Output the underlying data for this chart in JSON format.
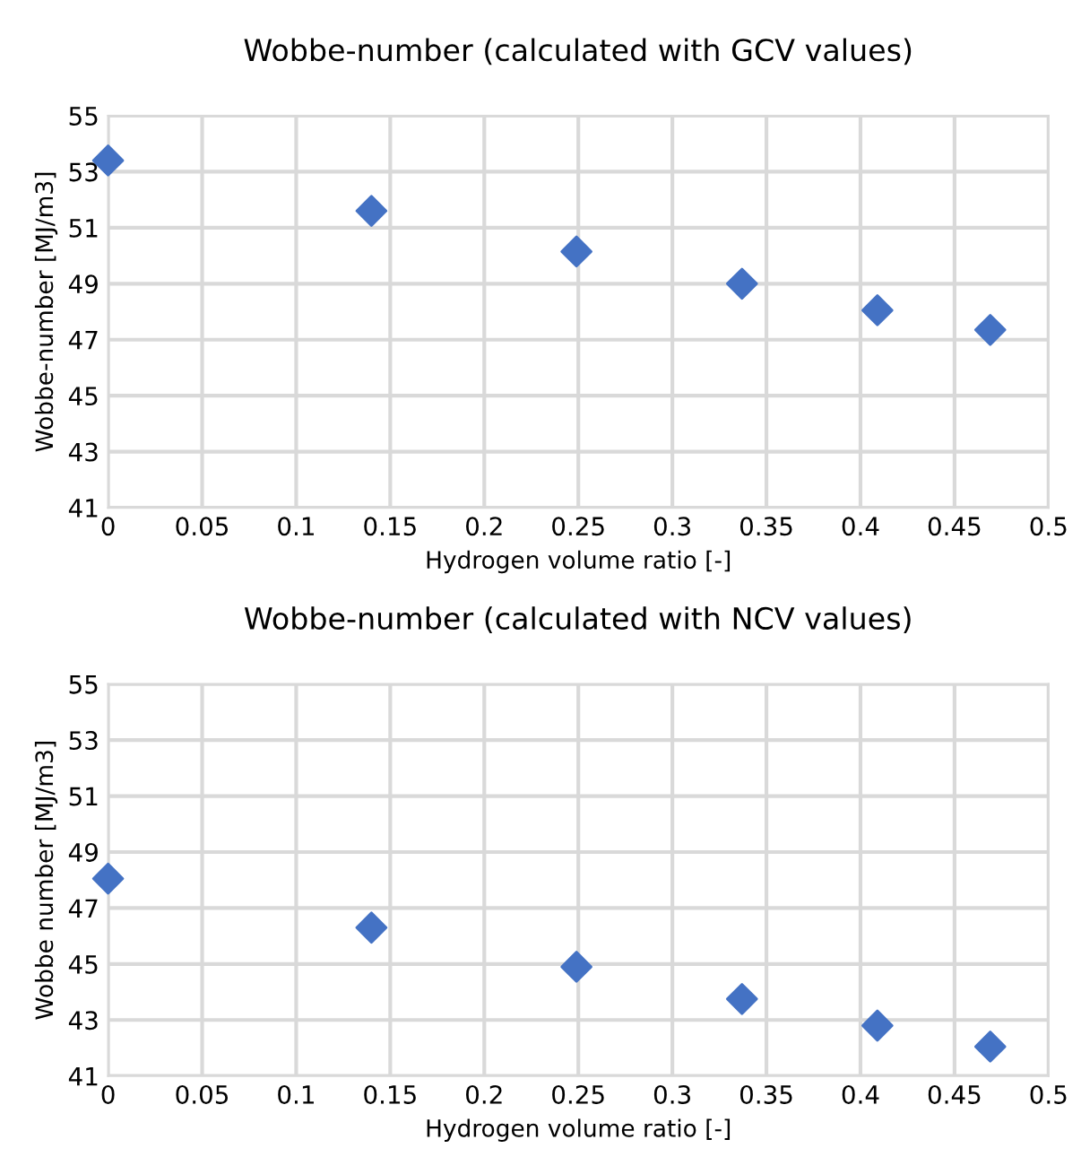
{
  "chart_data": [
    {
      "type": "scatter",
      "title": "Wobbe-number (calculated with GCV values)",
      "xlabel": "Hydrogen volume ratio [-]",
      "ylabel": "Wobbe-number [MJ/m3]",
      "x": [
        0,
        0.14,
        0.249,
        0.337,
        0.409,
        0.469
      ],
      "series": [
        {
          "color": "#4472c4",
          "values": [
            53.4,
            51.6,
            50.15,
            49.0,
            48.05,
            47.35
          ]
        }
      ],
      "xlim": [
        0,
        0.5
      ],
      "xticks": [
        0,
        0.05,
        0.1,
        0.15,
        0.2,
        0.25,
        0.3,
        0.35,
        0.4,
        0.45,
        0.5
      ],
      "ylim": [
        41,
        55
      ],
      "yticks": [
        41,
        43,
        45,
        47,
        49,
        51,
        53,
        55
      ],
      "grid": true,
      "marker": "diamond"
    },
    {
      "type": "scatter",
      "title": "Wobbe-number (calculated with NCV values)",
      "xlabel": "Hydrogen volume ratio [-]",
      "ylabel": "Wobbe number [MJ/m3]",
      "x": [
        0,
        0.14,
        0.249,
        0.337,
        0.409,
        0.469
      ],
      "series": [
        {
          "color": "#4472c4",
          "values": [
            48.05,
            46.3,
            44.9,
            43.75,
            42.8,
            42.05
          ]
        }
      ],
      "xlim": [
        0,
        0.5
      ],
      "xticks": [
        0,
        0.05,
        0.1,
        0.15,
        0.2,
        0.25,
        0.3,
        0.35,
        0.4,
        0.45,
        0.5
      ],
      "ylim": [
        41,
        55
      ],
      "yticks": [
        41,
        43,
        45,
        47,
        49,
        51,
        53,
        55
      ],
      "grid": true,
      "marker": "diamond"
    }
  ]
}
